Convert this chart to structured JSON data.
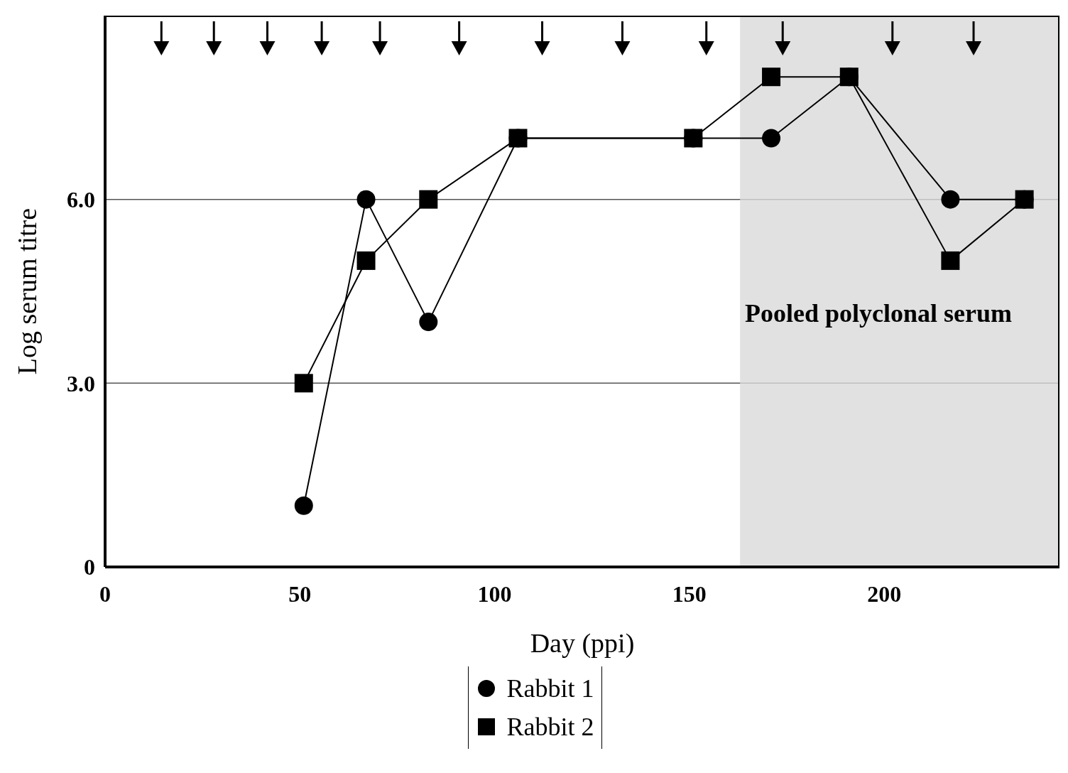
{
  "chart_data": {
    "type": "line",
    "xlabel": "Day (ppi)",
    "ylabel": "Log serum titre",
    "xlim": [
      0,
      245
    ],
    "xticks": [
      0,
      50,
      100,
      150,
      200
    ],
    "ylim": [
      0,
      9
    ],
    "yticks": [
      0,
      {
        "value": 3,
        "label": "3.0"
      },
      {
        "value": 6,
        "label": "6.0"
      }
    ],
    "grid": "y",
    "legend": "bottom",
    "series": [
      {
        "name": "Rabbit 1",
        "color": "#000000",
        "marker": "circle",
        "x": [
          51,
          67,
          83,
          106,
          151,
          171,
          191,
          217,
          236
        ],
        "values": [
          1.0,
          6.0,
          4.0,
          7.0,
          7.0,
          7.0,
          8.0,
          6.0,
          6.0
        ]
      },
      {
        "name": "Rabbit 2",
        "color": "#000000",
        "marker": "square",
        "x": [
          51,
          67,
          83,
          106,
          151,
          171,
          191,
          217,
          236
        ],
        "values": [
          3.0,
          5.0,
          6.0,
          7.0,
          7.0,
          8.0,
          8.0,
          5.0,
          6.0
        ]
      }
    ],
    "bands": [
      {
        "axis": "x",
        "from": 163,
        "to": 245,
        "label": "Pooled polyclonal serum",
        "color": "#d9d9d9"
      }
    ]
  }
}
